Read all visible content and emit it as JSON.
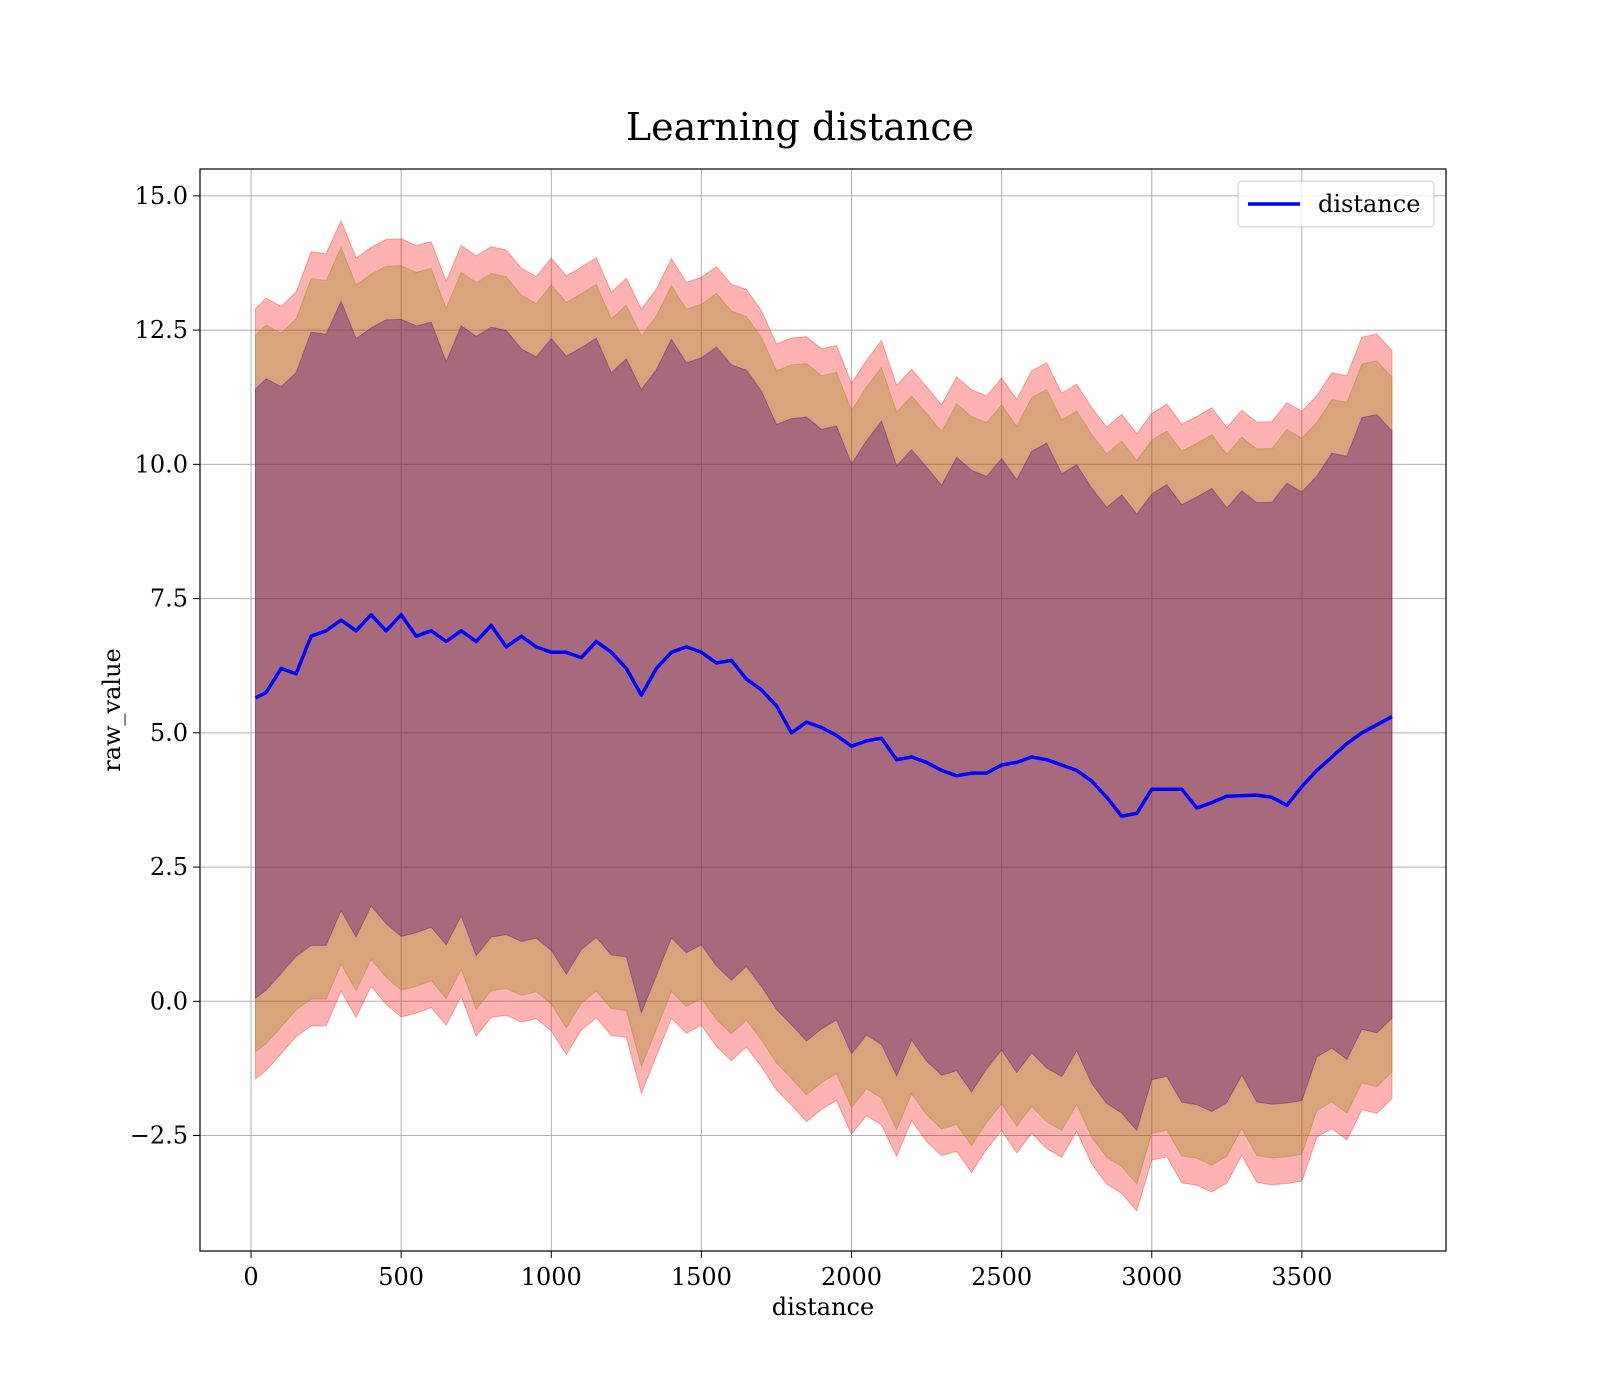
{
  "chart_data": {
    "type": "line",
    "title": "Learning distance",
    "xlabel": "distance",
    "ylabel": "raw_value",
    "xlim": [
      -170,
      3980
    ],
    "ylim": [
      -4.65,
      15.5
    ],
    "x_ticks": [
      0,
      500,
      1000,
      1500,
      2000,
      2500,
      3000,
      3500
    ],
    "y_ticks": [
      -2.5,
      0.0,
      2.5,
      5.0,
      7.5,
      10.0,
      12.5,
      15.0
    ],
    "x_tick_labels": [
      "0",
      "500",
      "1000",
      "1500",
      "2000",
      "2500",
      "3000",
      "3500"
    ],
    "y_tick_labels": [
      "−2.5",
      "0.0",
      "2.5",
      "5.0",
      "7.5",
      "10.0",
      "12.5",
      "15.0"
    ],
    "grid": true,
    "legend": {
      "placement": "top-right",
      "entries": [
        "distance"
      ]
    },
    "x": [
      15,
      50,
      100,
      150,
      200,
      250,
      300,
      350,
      400,
      450,
      500,
      550,
      600,
      650,
      700,
      750,
      800,
      850,
      900,
      950,
      1000,
      1050,
      1100,
      1150,
      1200,
      1250,
      1300,
      1350,
      1400,
      1450,
      1500,
      1550,
      1600,
      1650,
      1700,
      1750,
      1800,
      1850,
      1900,
      1950,
      2000,
      2050,
      2100,
      2150,
      2200,
      2250,
      2300,
      2350,
      2400,
      2450,
      2500,
      2550,
      2600,
      2650,
      2700,
      2750,
      2800,
      2850,
      2900,
      2950,
      3000,
      3050,
      3100,
      3150,
      3200,
      3250,
      3300,
      3350,
      3400,
      3450,
      3500,
      3550,
      3600,
      3650,
      3700,
      3750,
      3800
    ],
    "series": [
      {
        "name": "distance",
        "color": "#0000ff",
        "values": [
          5.65,
          5.75,
          6.2,
          6.1,
          6.8,
          6.9,
          7.1,
          6.9,
          7.2,
          6.9,
          7.2,
          6.8,
          6.9,
          6.7,
          6.9,
          6.7,
          7.0,
          6.6,
          6.8,
          6.6,
          6.5,
          6.5,
          6.4,
          6.7,
          6.5,
          6.2,
          5.7,
          6.2,
          6.5,
          6.6,
          6.5,
          6.3,
          6.35,
          6.0,
          5.8,
          5.5,
          5.0,
          5.2,
          5.1,
          4.95,
          4.75,
          4.85,
          4.9,
          4.5,
          4.55,
          4.45,
          4.3,
          4.2,
          4.25,
          4.25,
          4.4,
          4.45,
          4.55,
          4.5,
          4.4,
          4.3,
          4.1,
          3.8,
          3.45,
          3.5,
          3.95,
          3.95,
          3.95,
          3.6,
          3.7,
          3.82,
          3.83,
          3.84,
          3.8,
          3.65,
          4.0,
          4.3,
          4.55,
          4.8,
          5.0,
          5.15,
          5.3
        ]
      }
    ],
    "bands": [
      {
        "name": "band-outer",
        "color": "#ff0000",
        "opacity": 0.3,
        "upper_offset": 7.1,
        "lower_offset": 7.1
      },
      {
        "name": "band-middle",
        "color": "#808000",
        "opacity": 0.3,
        "upper_offset": 6.6,
        "lower_offset": 6.6
      },
      {
        "name": "band-inner",
        "color": "#4b0082",
        "opacity": 0.35,
        "upper_offset": 5.6,
        "lower_offset": 5.6
      }
    ]
  }
}
